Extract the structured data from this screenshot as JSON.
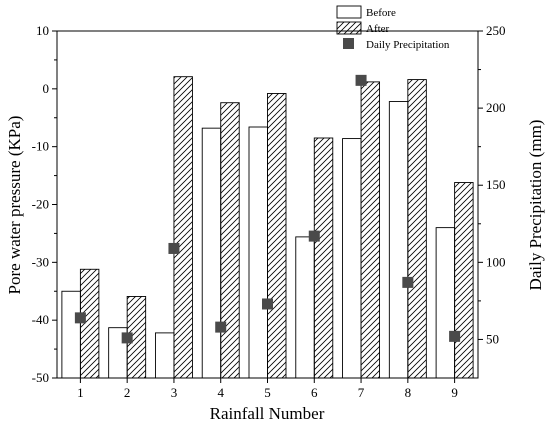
{
  "chart_data": {
    "type": "bar",
    "xlabel": "Rainfall Number",
    "ylabel": "Pore water pressure (KPa)",
    "y2label": "Daily Precipitation (mm)",
    "categories": [
      "1",
      "2",
      "3",
      "4",
      "5",
      "6",
      "7",
      "8",
      "9"
    ],
    "ylim": [
      -50,
      10
    ],
    "yticks": [
      10,
      0,
      -10,
      -20,
      -30,
      -40,
      -50
    ],
    "y2lim": [
      25,
      250
    ],
    "y2ticks": [
      250,
      200,
      150,
      100,
      50
    ],
    "series": [
      {
        "name": "Before",
        "axis": "left",
        "kind": "bar",
        "pattern": "none",
        "values": [
          -35.0,
          -41.3,
          -42.2,
          -6.8,
          -6.6,
          -25.6,
          -8.6,
          -2.2,
          -24.0
        ]
      },
      {
        "name": "After",
        "axis": "left",
        "kind": "bar",
        "pattern": "hatch",
        "values": [
          -31.2,
          -35.9,
          2.1,
          -2.4,
          -0.8,
          -8.5,
          1.2,
          1.6,
          -16.2
        ]
      },
      {
        "name": "Daily Precipitation",
        "axis": "right",
        "kind": "scatter",
        "marker": "square",
        "values": [
          64,
          51,
          109,
          58,
          73,
          117,
          218,
          87,
          52
        ]
      }
    ],
    "legend_position": "top-right",
    "grid": false,
    "colors": {
      "bar_fill": "#ffffff",
      "stroke": "#000000",
      "marker": "#4a4a4a"
    }
  }
}
